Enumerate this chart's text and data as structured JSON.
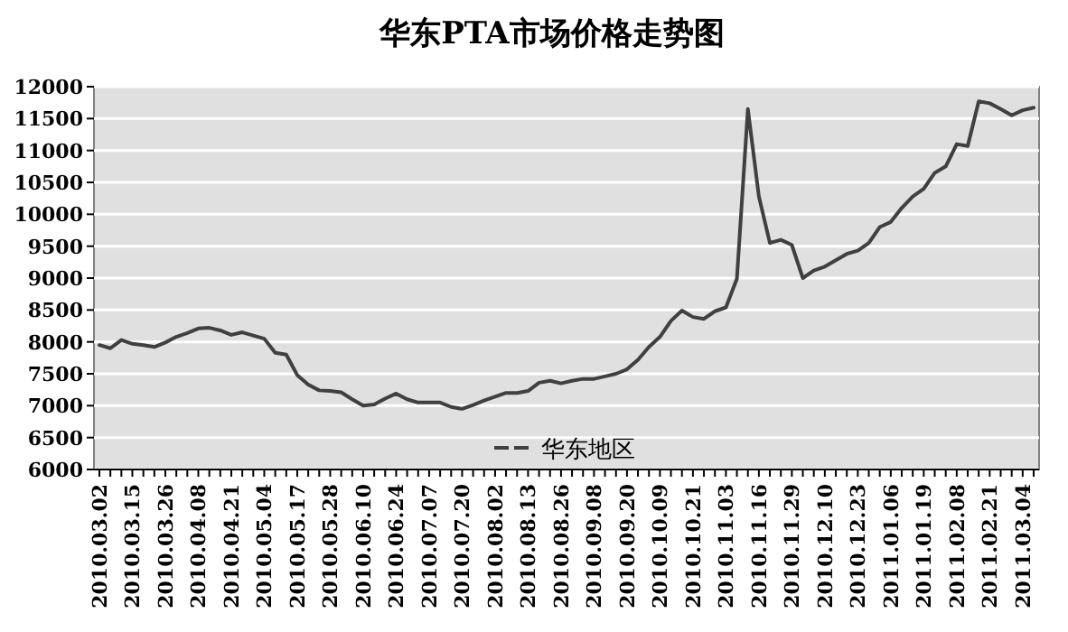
{
  "chart_data": {
    "type": "line",
    "title": "华东PTA市场价格走势图",
    "categories": [
      "2010.03.02",
      null,
      null,
      "2010.03.15",
      null,
      null,
      "2010.03.26",
      null,
      null,
      "2010.04.08",
      null,
      null,
      "2010.04.21",
      null,
      null,
      "2010.05.04",
      null,
      null,
      "2010.05.17",
      null,
      null,
      "2010.05.28",
      null,
      null,
      "2010.06.10",
      null,
      null,
      "2010.06.24",
      null,
      null,
      "2010.07.07",
      null,
      null,
      "2010.07.20",
      null,
      null,
      "2010.08.02",
      null,
      null,
      "2010.08.13",
      null,
      null,
      "2010.08.26",
      null,
      null,
      "2010.09.08",
      null,
      null,
      "2010.09.20",
      null,
      null,
      "2010.10.09",
      null,
      null,
      "2010.10.21",
      null,
      null,
      "2010.11.03",
      null,
      null,
      "2010.11.16",
      null,
      null,
      "2010.11.29",
      null,
      null,
      "2010.12.10",
      null,
      null,
      "2010.12.23",
      null,
      null,
      "2011.01.06",
      null,
      null,
      "2011.01.19",
      null,
      null,
      "2011.02.08",
      null,
      null,
      "2011.02.21",
      null,
      null,
      "2011.03.04",
      null
    ],
    "series": [
      {
        "name": "华东地区",
        "color": "#404040",
        "values": [
          7950,
          7900,
          8030,
          7970,
          7950,
          7920,
          7990,
          8080,
          8140,
          8210,
          8220,
          8180,
          8110,
          8150,
          8100,
          8050,
          7830,
          7800,
          7480,
          7330,
          7240,
          7230,
          7210,
          7100,
          7000,
          7020,
          7110,
          7190,
          7100,
          7050,
          7050,
          7050,
          6980,
          6950,
          7010,
          7080,
          7140,
          7200,
          7200,
          7230,
          7360,
          7390,
          7350,
          7390,
          7420,
          7420,
          7460,
          7500,
          7570,
          7720,
          7920,
          8080,
          8330,
          8490,
          8390,
          8360,
          8480,
          8540,
          8990,
          11650,
          10280,
          9550,
          9600,
          9520,
          9000,
          9120,
          9180,
          9280,
          9380,
          9430,
          9550,
          9800,
          9880,
          10100,
          10280,
          10400,
          10650,
          10750,
          11100,
          11070,
          11770,
          11740,
          11650,
          11550,
          11630,
          11670
        ]
      }
    ],
    "ylim": [
      6000,
      12000
    ],
    "yticks": [
      6000,
      6500,
      7000,
      7500,
      8000,
      8500,
      9000,
      9500,
      10000,
      10500,
      11000,
      11500,
      12000
    ],
    "grid": "y",
    "legend": "bottom",
    "line_style": "solid",
    "marker": "none"
  }
}
